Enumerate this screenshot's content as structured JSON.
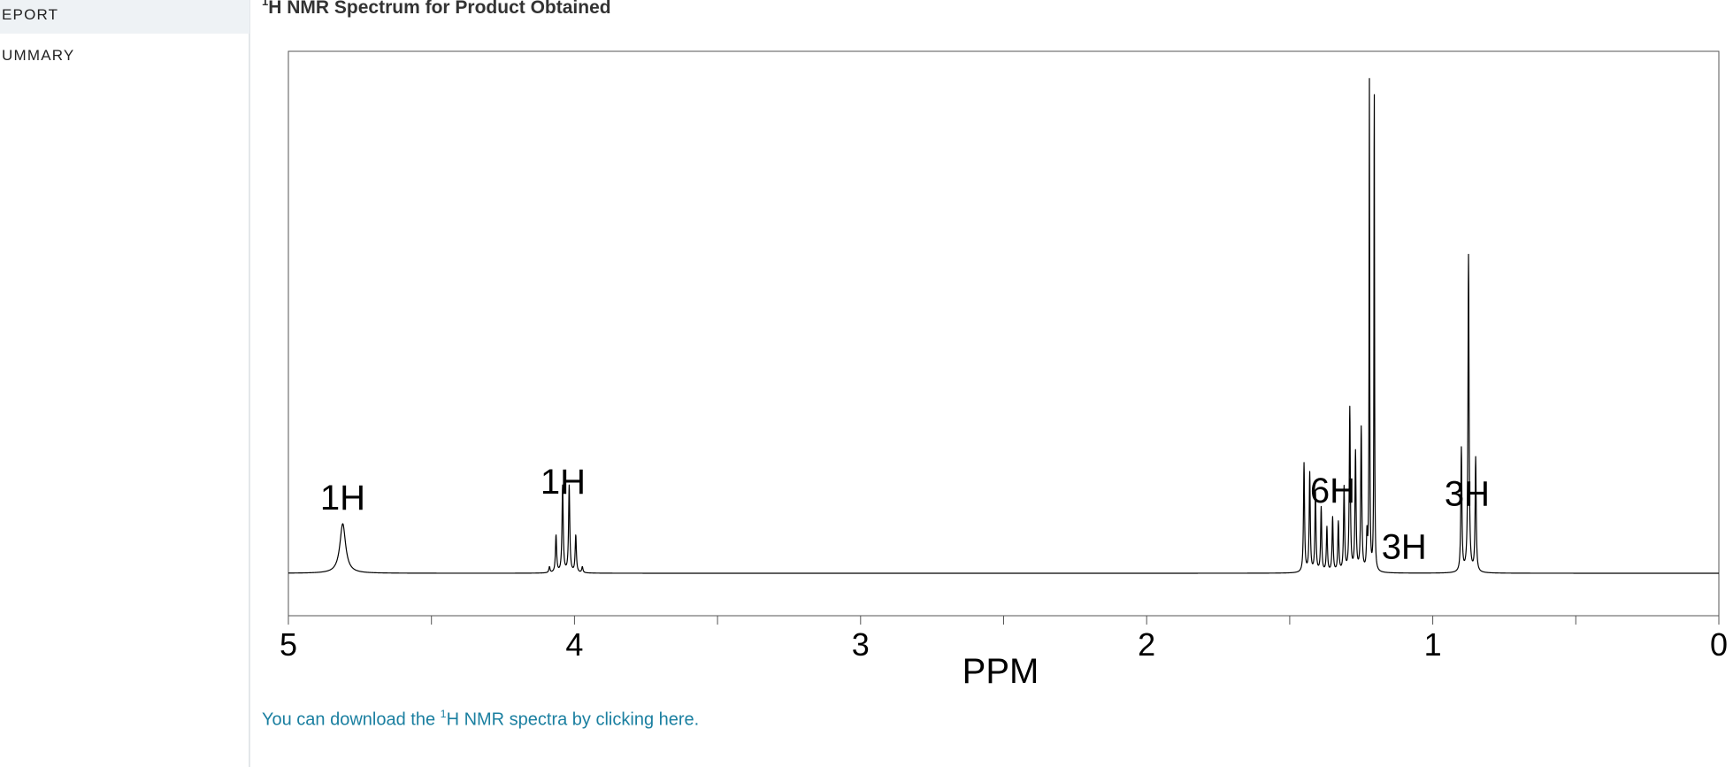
{
  "sidebar": {
    "items": [
      {
        "label": "EPORT",
        "active": true
      },
      {
        "label": "UMMARY",
        "active": false
      }
    ]
  },
  "page": {
    "title_sup": "1",
    "title_text": "H NMR Spectrum for Product Obtained"
  },
  "download": {
    "prefix": "You can download the ",
    "sup": "1",
    "suffix": "H NMR spectra by clicking here."
  },
  "chart_data": {
    "type": "line",
    "title": "",
    "xlabel": "PPM",
    "ylabel": "",
    "xlim": [
      5,
      0
    ],
    "x_reversed": true,
    "grid": false,
    "x_ticks": [
      5,
      4,
      3,
      2,
      1,
      0
    ],
    "x_tick_labels": [
      "5",
      "4",
      "3",
      "2",
      "1",
      "0"
    ],
    "x_minor_ticks": [
      4.5,
      3.5,
      2.5,
      1.5,
      0.5
    ],
    "peaks": [
      {
        "shift": 4.81,
        "heights": [
          0.1
        ],
        "spacing": 0,
        "width": 0.012
      },
      {
        "shift": 4.03,
        "heights": [
          0.012,
          0.075,
          0.175,
          0.175,
          0.075,
          0.012
        ],
        "spacing": 0.023,
        "width": 0.0025
      },
      {
        "shift": 1.34,
        "heights": [
          0.07,
          0.29,
          0.24,
          0.33,
          0.17,
          0.1,
          0.11,
          0.09,
          0.13,
          0.16,
          0.2,
          0.22
        ],
        "spacing": 0.02,
        "width": 0.0022
      },
      {
        "shift": 1.213,
        "heights": [
          0.99,
          0.99
        ],
        "spacing": 0.017,
        "width": 0.0012
      },
      {
        "shift": 0.875,
        "heights": [
          0.23,
          0.64,
          0.25
        ],
        "spacing": 0.025,
        "width": 0.0022
      }
    ],
    "integrations": [
      {
        "label": "1H",
        "shift": 4.81
      },
      {
        "label": "1H",
        "shift": 4.04
      },
      {
        "label": "6H",
        "shift": 1.35
      },
      {
        "label": "3H",
        "shift": 1.1
      },
      {
        "label": "3H",
        "shift": 0.88
      }
    ]
  }
}
